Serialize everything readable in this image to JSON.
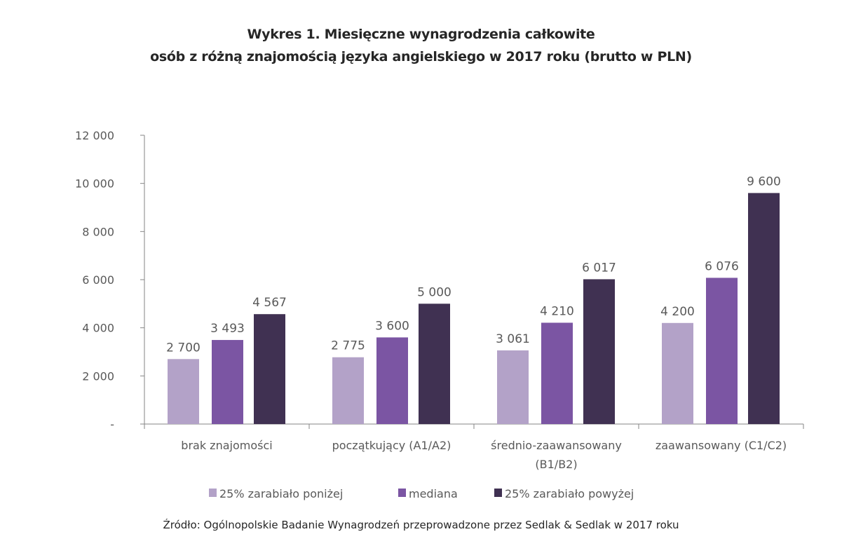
{
  "chart_data": {
    "type": "bar",
    "title": [
      "Wykres 1. Miesięczne wynagrodzenia całkowite",
      "osób z różną znajomością języka angielskiego w 2017 roku (brutto w PLN)"
    ],
    "categories": [
      [
        "brak znajomości"
      ],
      [
        "początkujący (A1/A2)"
      ],
      [
        "średnio-zaawansowany",
        "(B1/B2)"
      ],
      [
        "zaawansowany (C1/C2)"
      ]
    ],
    "series": [
      {
        "name": "25% zarabiało poniżej",
        "color": "#b3a2c8",
        "values": [
          2700,
          2775,
          3061,
          4200
        ],
        "labels": [
          "2 700",
          "2 775",
          "3 061",
          "4 200"
        ]
      },
      {
        "name": "mediana",
        "color": "#7b55a3",
        "values": [
          3493,
          3600,
          4210,
          6076
        ],
        "labels": [
          "3 493",
          "3 600",
          "4 210",
          "6 076"
        ]
      },
      {
        "name": "25% zarabiało powyżej",
        "color": "#403152",
        "values": [
          4567,
          5000,
          6017,
          9600
        ],
        "labels": [
          "4 567",
          "5 000",
          "6 017",
          "9 600"
        ]
      }
    ],
    "ylim": [
      0,
      12000
    ],
    "yticks": [
      0,
      2000,
      4000,
      6000,
      8000,
      10000,
      12000
    ],
    "ytick_labels": [
      "-",
      "2 000",
      "4 000",
      "6 000",
      "8 000",
      "10 000",
      "12 000"
    ],
    "grid": false,
    "legend": "bottom",
    "xlabel": "",
    "ylabel": ""
  },
  "source": "Źródło: Ogólnopolskie Badanie Wynagrodzeń przeprowadzone przez Sedlak & Sedlak w 2017 roku"
}
